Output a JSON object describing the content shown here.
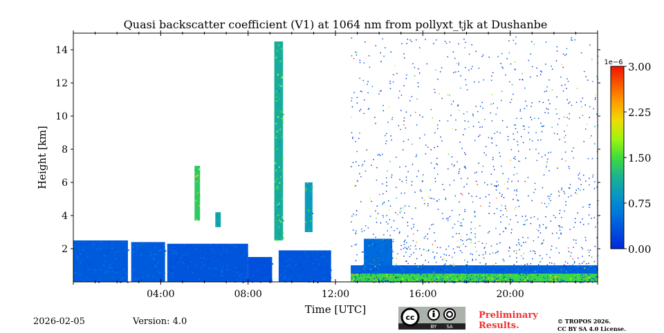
{
  "chart_data": {
    "type": "heatmap",
    "title": "Quasi backscatter coefficient (V1) at 1064 nm from pollyxt_tjk at Dushanbe",
    "xlabel": "Time [UTC]",
    "ylabel": "Height [km]",
    "xlim_hours": [
      0,
      24
    ],
    "ylim_km": [
      0,
      15
    ],
    "x_ticks": [
      {
        "v": 4,
        "label": "04:00"
      },
      {
        "v": 8,
        "label": "08:00"
      },
      {
        "v": 12,
        "label": "12:00"
      },
      {
        "v": 16,
        "label": "16:00"
      },
      {
        "v": 20,
        "label": "20:00"
      }
    ],
    "y_ticks": [
      {
        "v": 2,
        "label": "2"
      },
      {
        "v": 4,
        "label": "4"
      },
      {
        "v": 6,
        "label": "6"
      },
      {
        "v": 8,
        "label": "8"
      },
      {
        "v": 10,
        "label": "10"
      },
      {
        "v": 12,
        "label": "12"
      },
      {
        "v": 14,
        "label": "14"
      }
    ],
    "colorbar": {
      "min": 0,
      "max": 3.0,
      "exponent_label": "1e−6",
      "ticks": [
        "0.00",
        "0.75",
        "1.50",
        "2.25",
        "3.00"
      ]
    },
    "features": [
      {
        "name": "boundary-layer",
        "t0": 0,
        "t1": 2.5,
        "h0": 0,
        "h1": 2.5,
        "value": 0.45
      },
      {
        "name": "boundary-layer",
        "t0": 2.65,
        "t1": 4.2,
        "h0": 0,
        "h1": 2.4,
        "value": 0.45
      },
      {
        "name": "boundary-layer",
        "t0": 4.3,
        "t1": 8.0,
        "h0": 0,
        "h1": 2.3,
        "value": 0.4
      },
      {
        "name": "boundary-layer",
        "t0": 8.0,
        "t1": 9.1,
        "h0": 0,
        "h1": 1.5,
        "value": 0.35
      },
      {
        "name": "boundary-layer",
        "t0": 9.4,
        "t1": 11.8,
        "h0": 0,
        "h1": 1.9,
        "value": 0.4
      },
      {
        "name": "cloud",
        "t0": 5.55,
        "t1": 5.8,
        "h0": 3.7,
        "h1": 7.0,
        "value": 1.6
      },
      {
        "name": "cloud",
        "t0": 6.5,
        "t1": 6.75,
        "h0": 3.3,
        "h1": 4.2,
        "value": 1.2
      },
      {
        "name": "cloud",
        "t0": 9.2,
        "t1": 9.6,
        "h0": 2.5,
        "h1": 14.5,
        "value": 1.3
      },
      {
        "name": "cloud",
        "t0": 10.6,
        "t1": 10.95,
        "h0": 3.0,
        "h1": 6.0,
        "value": 1.1
      },
      {
        "name": "aerosol-layer",
        "t0": 12.7,
        "t1": 24,
        "h0": 0,
        "h1": 1.0,
        "value": 0.5
      },
      {
        "name": "near-surface-aerosol",
        "t0": 12.7,
        "t1": 24,
        "h0": 0,
        "h1": 0.5,
        "value": 1.7
      },
      {
        "name": "aerosol-hump",
        "t0": 13.3,
        "t1": 14.6,
        "h0": 1.0,
        "h1": 2.6,
        "value": 0.6
      }
    ]
  },
  "footer": {
    "date": "2026-02-05",
    "version": "Version: 4.0",
    "preliminary": "Preliminary",
    "results": "Results.",
    "copyright": "© TROPOS 2026.",
    "license": "CC BY SA 4.0 License.",
    "cc_badge": "CC BY SA"
  }
}
